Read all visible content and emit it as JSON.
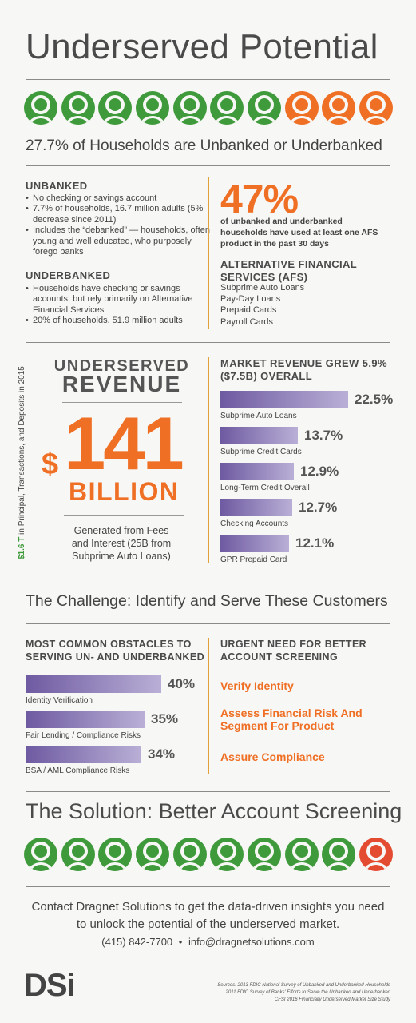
{
  "header": {
    "title": "Underserved Potential"
  },
  "icons_top": [
    "green",
    "green",
    "green",
    "green",
    "green",
    "green",
    "green",
    "orange",
    "orange",
    "orange"
  ],
  "headline": "27.7% of Households are Unbanked or Underbanked",
  "unbanked": {
    "heading": "UNBANKED",
    "bullets": [
      "No checking or savings account",
      "7.7% of households, 16.7 million adults (5% decrease since 2011)",
      "Includes the “debanked” — households, often young and well educated, who purposely forego banks"
    ]
  },
  "underbanked": {
    "heading": "UNDERBANKED",
    "bullets": [
      "Households have checking or savings accounts, but rely primarily on Alternative Financial Services",
      "20% of households, 51.9 million adults"
    ]
  },
  "stat47": {
    "value": "47%",
    "text": "of unbanked and underbanked households have used at least one AFS product in the past 30 days"
  },
  "afs": {
    "heading": "ALTERNATIVE FINANCIAL SERVICES (AFS)",
    "items": [
      "Subprime Auto Loans",
      "Pay-Day Loans",
      "Prepaid Cards",
      "Payroll Cards"
    ]
  },
  "revenue": {
    "side_text_bold": "$1.6 T",
    "side_text": " in Principal, Transactions, and Deposits in 2015",
    "title_line1": "UNDERSERVED",
    "title_line2": "REVENUE",
    "dollar": "$",
    "amount": "141",
    "unit": "BILLION",
    "caption": "Generated from Fees and Interest (25B from Subprime Auto Loans)"
  },
  "market_growth": {
    "heading": "MARKET REVENUE GREW 5.9% ($7.5B) OVERALL",
    "bars": [
      {
        "pct": "22.5%",
        "label": "Subprime Auto Loans",
        "value": 22.5
      },
      {
        "pct": "13.7%",
        "label": "Subprime Credit Cards",
        "value": 13.7
      },
      {
        "pct": "12.9%",
        "label": "Long-Term Credit Overall",
        "value": 12.9
      },
      {
        "pct": "12.7%",
        "label": "Checking Accounts",
        "value": 12.7
      },
      {
        "pct": "12.1%",
        "label": "GPR Prepaid Card",
        "value": 12.1
      }
    ]
  },
  "challenge": {
    "title": "The Challenge: Identify and Serve These Customers"
  },
  "obstacles": {
    "heading": "MOST COMMON OBSTACLES TO SERVING UN- AND UNDERBANKED",
    "bars": [
      {
        "pct": "40%",
        "label": "Identity Verification",
        "value": 40
      },
      {
        "pct": "35%",
        "label": "Fair Lending / Compliance Risks",
        "value": 35
      },
      {
        "pct": "34%",
        "label": "BSA / AML Compliance Risks",
        "value": 34
      }
    ]
  },
  "urgent": {
    "heading": "URGENT NEED FOR BETTER ACCOUNT SCREENING",
    "items": [
      "Verify Identity",
      "Assess Financial Risk And Segment For Product",
      "Assure Compliance"
    ]
  },
  "solution": {
    "title": "The Solution: Better Account Screening"
  },
  "icons_bottom": [
    "green",
    "green",
    "green",
    "green",
    "green",
    "green",
    "green",
    "green",
    "green",
    "red"
  ],
  "footer": {
    "line1": "Contact Dragnet Solutions to get the data-driven insights you need to unlock the potential of the underserved market.",
    "phone": "(415) 842-7700",
    "separator": "•",
    "email": "info@dragnetsolutions.com",
    "logo": "DSi",
    "sources": [
      "Sources: 2013 FDIC National Survey of Unbanked and Underbanked Households",
      "2011 FDIC Survey of Banks' Efforts to Serve the Unbanked and Underbanked",
      "CFSI 2016 Financially Underserved Market Size Study"
    ]
  },
  "colors": {
    "green": "#3f9a3b",
    "orange": "#ef6f24",
    "red": "#e44c32",
    "purple": "#6e5aa1"
  }
}
